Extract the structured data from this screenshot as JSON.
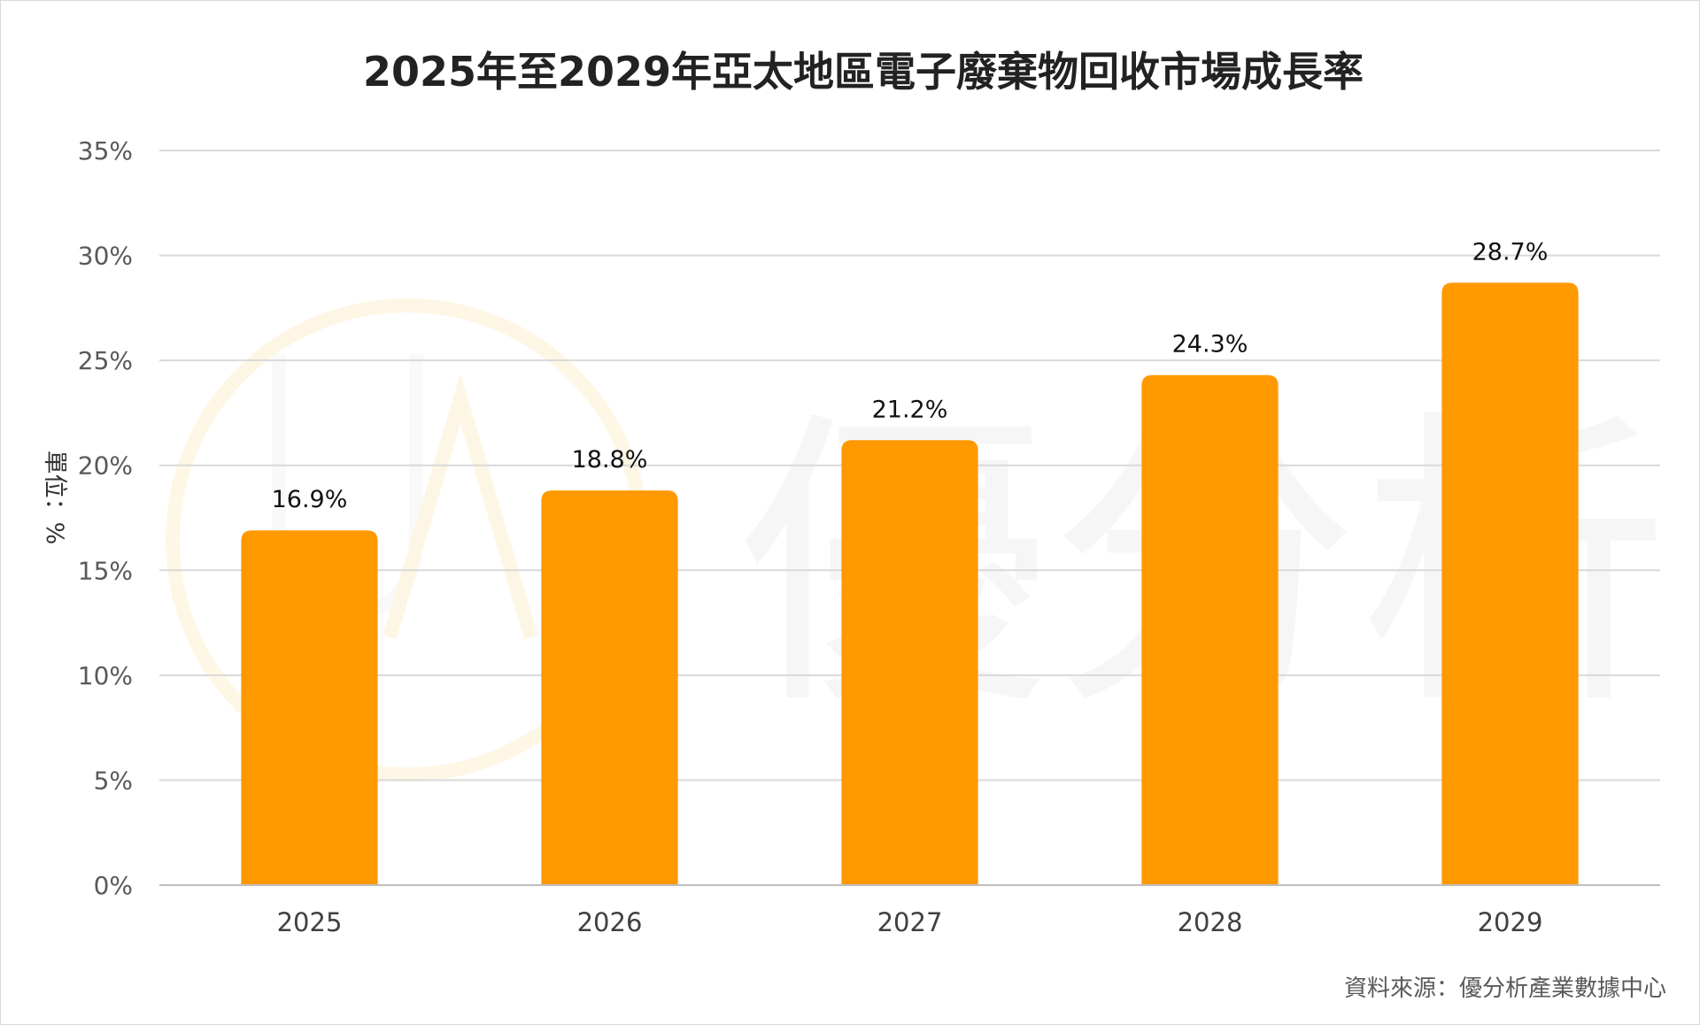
{
  "chart_data": {
    "type": "bar",
    "title": "2025年至2029年亞太地區電子廢棄物回收市場成長率",
    "ylabel": "單位：%",
    "xlabel": "",
    "categories": [
      "2025",
      "2026",
      "2027",
      "2028",
      "2029"
    ],
    "values": [
      16.9,
      18.8,
      21.2,
      24.3,
      28.7
    ],
    "value_labels": [
      "16.9%",
      "18.8%",
      "21.2%",
      "24.3%",
      "28.7%"
    ],
    "ylim": [
      0,
      35
    ],
    "y_ticks": [
      0,
      5,
      10,
      15,
      20,
      25,
      30,
      35
    ],
    "y_tick_labels": [
      "0%",
      "5%",
      "10%",
      "15%",
      "20%",
      "25%",
      "30%",
      "35%"
    ],
    "grid": true,
    "legend": "none",
    "bar_color": "#FF9900",
    "watermark": "優分析",
    "source": "資料來源：優分析產業數據中心"
  }
}
